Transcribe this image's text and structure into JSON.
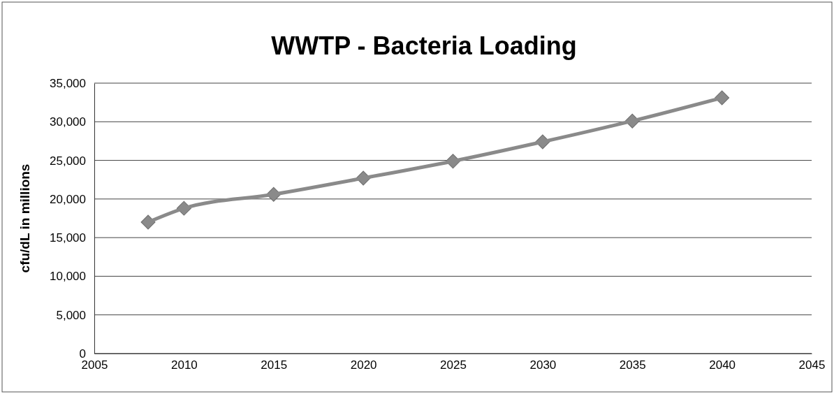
{
  "chart_data": {
    "type": "line",
    "title": "WWTP - Bacteria Loading",
    "ylabel": "cfu/dL in millions",
    "x": [
      2008,
      2010,
      2015,
      2020,
      2025,
      2030,
      2035,
      2040
    ],
    "series": [
      {
        "color": "#8a8a8a",
        "values": [
          17000,
          18800,
          20600,
          22700,
          24900,
          27400,
          30100,
          33100
        ]
      }
    ],
    "xlim": [
      2005,
      2045
    ],
    "xticks": [
      2005,
      2010,
      2015,
      2020,
      2025,
      2030,
      2035,
      2040,
      2045
    ],
    "ylim": [
      0,
      35000
    ],
    "yticks": [
      {
        "value": 0,
        "label": "0"
      },
      {
        "value": 5000,
        "label": "5,000"
      },
      {
        "value": 10000,
        "label": "10,000"
      },
      {
        "value": 15000,
        "label": "15,000"
      },
      {
        "value": 20000,
        "label": "20,000"
      },
      {
        "value": 25000,
        "label": "25,000"
      },
      {
        "value": 30000,
        "label": "30,000"
      },
      {
        "value": 35000,
        "label": "35,000"
      }
    ],
    "grid": "y",
    "marker": "diamond",
    "line_style": "solid"
  }
}
